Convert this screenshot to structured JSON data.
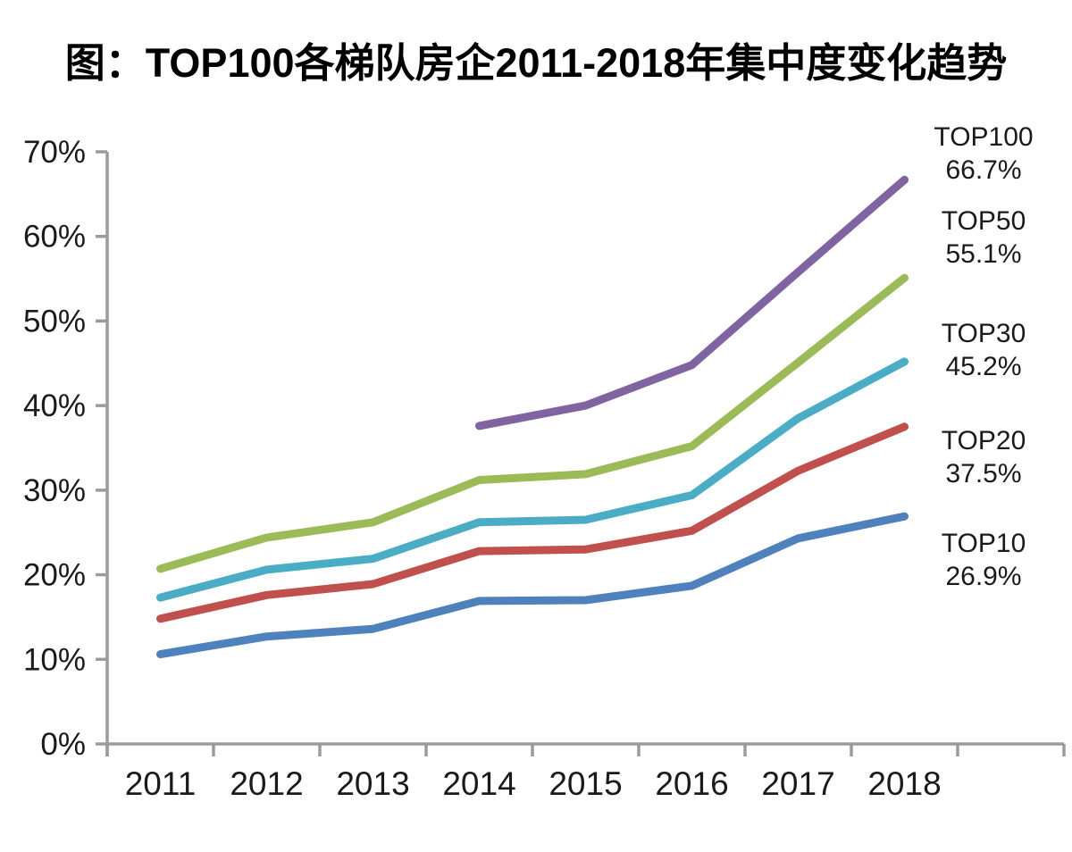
{
  "title": "图：TOP100各梯队房企2011-2018年集中度变化趋势",
  "axis": {
    "color": "#9B9B9B",
    "tick_label_color": "#1a1a1a"
  },
  "chart_data": {
    "type": "line",
    "title": "图：TOP100各梯队房企2011-2018年集中度变化趋势",
    "xlabel": "",
    "ylabel": "",
    "categories": [
      "2011",
      "2012",
      "2013",
      "2014",
      "2015",
      "2016",
      "2017",
      "2018"
    ],
    "ylim": [
      0,
      70
    ],
    "ytick_step": 10,
    "ytick_labels": [
      "0%",
      "10%",
      "20%",
      "30%",
      "40%",
      "50%",
      "60%",
      "70%"
    ],
    "grid": false,
    "legend_position": "right-inline-labels",
    "series": [
      {
        "name": "TOP100",
        "color": "#8064A2",
        "end_value": "66.7%",
        "values": [
          null,
          null,
          null,
          37.6,
          40.0,
          44.8,
          55.8,
          66.7
        ]
      },
      {
        "name": "TOP50",
        "color": "#9BBB59",
        "end_value": "55.1%",
        "values": [
          20.7,
          24.4,
          26.2,
          31.2,
          31.9,
          35.2,
          45.1,
          55.1
        ]
      },
      {
        "name": "TOP30",
        "color": "#4BACC6",
        "end_value": "45.2%",
        "values": [
          17.3,
          20.6,
          21.9,
          26.2,
          26.5,
          29.4,
          38.5,
          45.2
        ]
      },
      {
        "name": "TOP20",
        "color": "#C0504D",
        "end_value": "37.5%",
        "values": [
          14.8,
          17.6,
          18.9,
          22.8,
          23.0,
          25.2,
          32.3,
          37.5
        ]
      },
      {
        "name": "TOP10",
        "color": "#4F81BD",
        "end_value": "26.9%",
        "values": [
          10.6,
          12.7,
          13.6,
          16.9,
          17.0,
          18.7,
          24.3,
          26.9
        ]
      }
    ]
  }
}
